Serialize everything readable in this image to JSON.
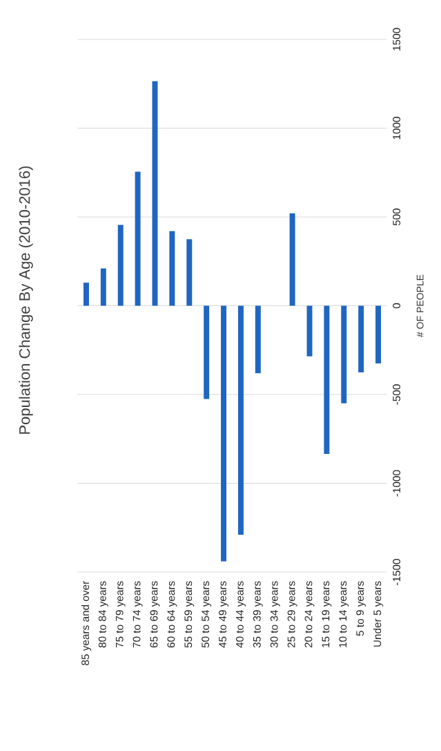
{
  "chart_data": {
    "type": "bar",
    "title": "Population Change By Age (2010-2016)",
    "ylabel": "# OF PEOPLE",
    "categories": [
      "85 years and over",
      "80 to 84 years",
      "75 to 79 years",
      "70 to 74 years",
      "65 to 69 years",
      "60 to 64 years",
      "55 to 59 years",
      "50 to 54 years",
      "45 to 49 years",
      "40 to 44 years",
      "35 to 39 years",
      "30 to 34 years",
      "25 to 29 years",
      "20 to 24 years",
      "15 to 19 years",
      "10 to 14 years",
      "5 to 9 years",
      "Under 5 years"
    ],
    "values": [
      130,
      210,
      455,
      755,
      1265,
      420,
      375,
      -525,
      -1440,
      -1290,
      -380,
      0,
      520,
      -285,
      -835,
      -550,
      -375,
      -325
    ],
    "color": "#1f66c1",
    "ylim": [
      -1500,
      1500
    ],
    "yticks": [
      -1500,
      -1000,
      -500,
      0,
      500,
      1000,
      1500
    ],
    "grid": "y"
  }
}
